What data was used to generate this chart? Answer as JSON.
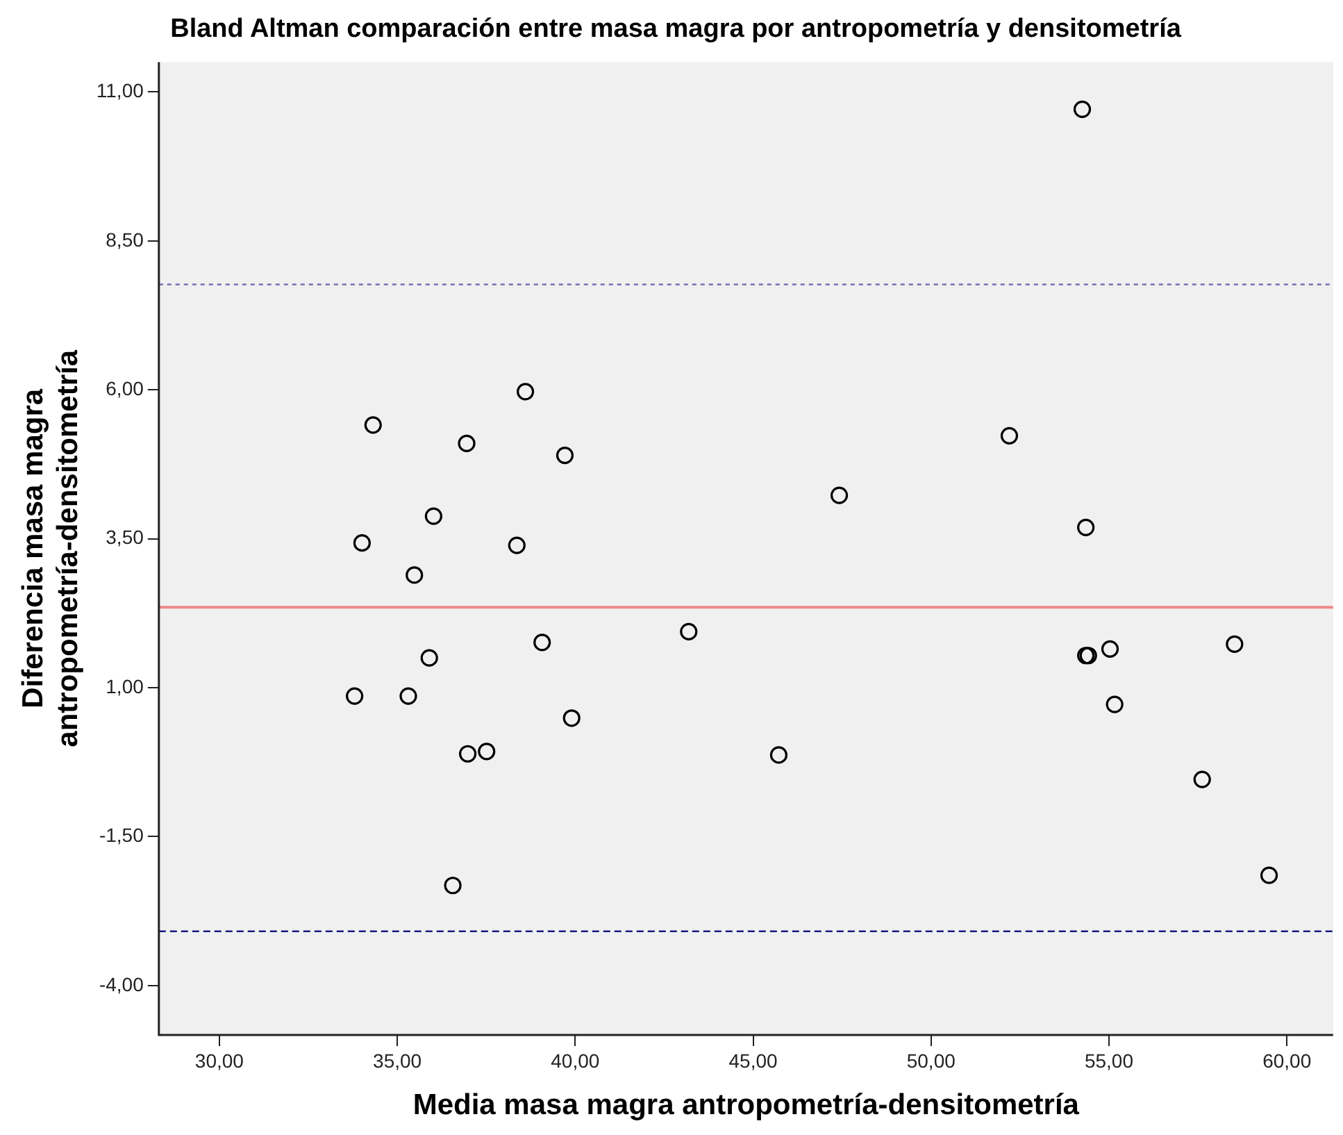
{
  "chart_data": {
    "type": "scatter",
    "title": "Bland Altman comparación entre masa magra por antropometría y densitometría",
    "xlabel": "Media masa magra antropometría-densitometría",
    "ylabel": "Diferencia masa magra antropometría-densitometría",
    "series": [
      {
        "color": "#000000",
        "x": [
          38.6,
          34.32,
          36.95,
          39.71,
          36.02,
          34.01,
          38.36,
          35.48,
          35.9,
          39.07,
          43.19,
          33.8,
          35.31,
          39.9,
          36.98,
          37.51,
          45.72,
          36.56,
          54.25,
          52.2,
          47.42,
          54.35,
          54.35,
          54.42,
          55.03,
          58.53,
          55.16,
          57.62,
          59.5
        ],
        "values": [
          5.97,
          5.41,
          5.1,
          4.9,
          3.88,
          3.43,
          3.39,
          2.89,
          1.5,
          1.76,
          1.94,
          0.86,
          0.86,
          0.49,
          -0.11,
          -0.07,
          -0.13,
          -2.32,
          10.71,
          5.23,
          4.23,
          3.69,
          1.54,
          1.54,
          1.65,
          1.73,
          0.72,
          -0.54,
          -2.15
        ]
      }
    ],
    "xlim": [
      28.3,
      61.3
    ],
    "xticks": [
      {
        "value": 30,
        "label": "30,00"
      },
      {
        "value": 35,
        "label": "35,00"
      },
      {
        "value": 40,
        "label": "40,00"
      },
      {
        "value": 45,
        "label": "45,00"
      },
      {
        "value": 50,
        "label": "50,00"
      },
      {
        "value": 55,
        "label": "55,00"
      },
      {
        "value": 60,
        "label": "60,00"
      }
    ],
    "ylim": [
      -4.83,
      11.5
    ],
    "yticks": [
      {
        "value": -4,
        "label": "-4,00"
      },
      {
        "value": -1.5,
        "label": "-1,50"
      },
      {
        "value": 1,
        "label": "1,00"
      },
      {
        "value": 3.5,
        "label": "3,50"
      },
      {
        "value": 6,
        "label": "6,00"
      },
      {
        "value": 8.5,
        "label": "8,50"
      },
      {
        "value": 11,
        "label": "11,00"
      }
    ],
    "ref_lines": [
      {
        "axis": "y",
        "value": 7.77,
        "color": "#7070b8",
        "line_style": "dotted"
      },
      {
        "axis": "y",
        "value": 2.35,
        "color": "#f08888",
        "line_style": "solid"
      },
      {
        "axis": "y",
        "value": -3.09,
        "color": "#1a1a80",
        "line_style": "dashed"
      }
    ],
    "marker": "circle",
    "grid": false,
    "legend": false
  }
}
